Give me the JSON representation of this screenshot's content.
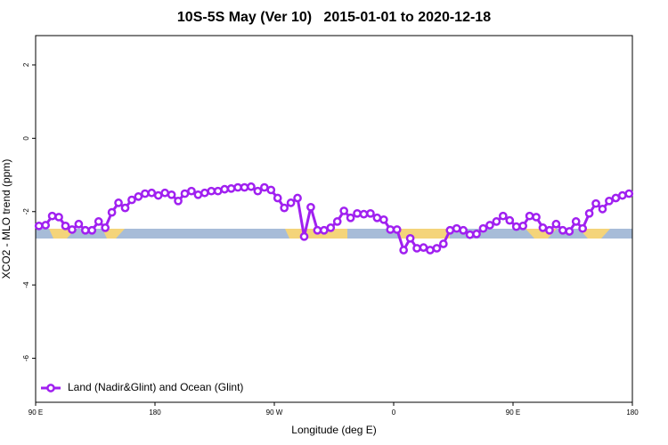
{
  "chart_data": {
    "type": "line",
    "title": "10S-5S May (Ver 10)   2015-01-01 to 2020-12-18",
    "xlabel": "Longitude (deg E)",
    "ylabel": "XCO2 - MLO trend (ppm)",
    "xlim": [
      90,
      540
    ],
    "ylim": [
      -7.2,
      2.8
    ],
    "xticks": [
      {
        "value": 90,
        "label": "90 E"
      },
      {
        "value": 180,
        "label": "180"
      },
      {
        "value": 270,
        "label": "90 W"
      },
      {
        "value": 360,
        "label": "0"
      },
      {
        "value": 450,
        "label": "90 E"
      },
      {
        "value": 540,
        "label": "180"
      }
    ],
    "yticks": [
      2,
      0,
      -2,
      -4,
      -6
    ],
    "legend": "bottom-left",
    "x": [
      92.5,
      97.5,
      102.5,
      107.5,
      112.5,
      117.5,
      122.5,
      127.5,
      132.5,
      137.5,
      142.5,
      147.5,
      152.5,
      157.5,
      162.5,
      167.5,
      172.5,
      177.5,
      182.5,
      187.5,
      192.5,
      197.5,
      202.5,
      207.5,
      212.5,
      217.5,
      222.5,
      227.5,
      232.5,
      237.5,
      242.5,
      247.5,
      252.5,
      257.5,
      262.5,
      267.5,
      272.5,
      277.5,
      282.5,
      287.5,
      292.5,
      297.5,
      302.5,
      307.5,
      312.5,
      317.5,
      322.5,
      327.5,
      332.5,
      337.5,
      342.5,
      347.5,
      352.5,
      357.5,
      362.5,
      367.5,
      372.5,
      377.5,
      382.5,
      387.5,
      392.5,
      397.5,
      402.5,
      407.5,
      412.5,
      417.5,
      422.5,
      427.5,
      432.5,
      437.5,
      442.5,
      447.5,
      452.5,
      457.5,
      462.5,
      467.5,
      472.5,
      477.5,
      482.5,
      487.5,
      492.5,
      497.5,
      502.5,
      507.5,
      512.5,
      517.5,
      522.5,
      527.5,
      532.5,
      537.5
    ],
    "series": [
      {
        "name": "Land (Nadir&Glint) and Ocean (Glint)",
        "color": "#a020f0",
        "values": [
          -2.39,
          -2.37,
          -2.12,
          -2.15,
          -2.39,
          -2.49,
          -2.34,
          -2.51,
          -2.51,
          -2.27,
          -2.44,
          -2.02,
          -1.76,
          -1.9,
          -1.68,
          -1.59,
          -1.51,
          -1.49,
          -1.56,
          -1.49,
          -1.54,
          -1.71,
          -1.51,
          -1.44,
          -1.54,
          -1.49,
          -1.44,
          -1.44,
          -1.39,
          -1.37,
          -1.34,
          -1.34,
          -1.32,
          -1.44,
          -1.34,
          -1.41,
          -1.63,
          -1.9,
          -1.76,
          -1.63,
          -2.68,
          -1.88,
          -2.51,
          -2.51,
          -2.44,
          -2.27,
          -1.98,
          -2.17,
          -2.05,
          -2.07,
          -2.05,
          -2.17,
          -2.22,
          -2.49,
          -2.49,
          -3.05,
          -2.73,
          -3.0,
          -2.98,
          -3.05,
          -3.0,
          -2.88,
          -2.51,
          -2.46,
          -2.51,
          -2.63,
          -2.61,
          -2.46,
          -2.37,
          -2.27,
          -2.12,
          -2.24,
          -2.41,
          -2.39,
          -2.12,
          -2.15,
          -2.44,
          -2.51,
          -2.34,
          -2.51,
          -2.54,
          -2.27,
          -2.46,
          -2.05,
          -1.78,
          -1.93,
          -1.71,
          -1.63,
          -1.56,
          -1.51
        ]
      }
    ]
  }
}
